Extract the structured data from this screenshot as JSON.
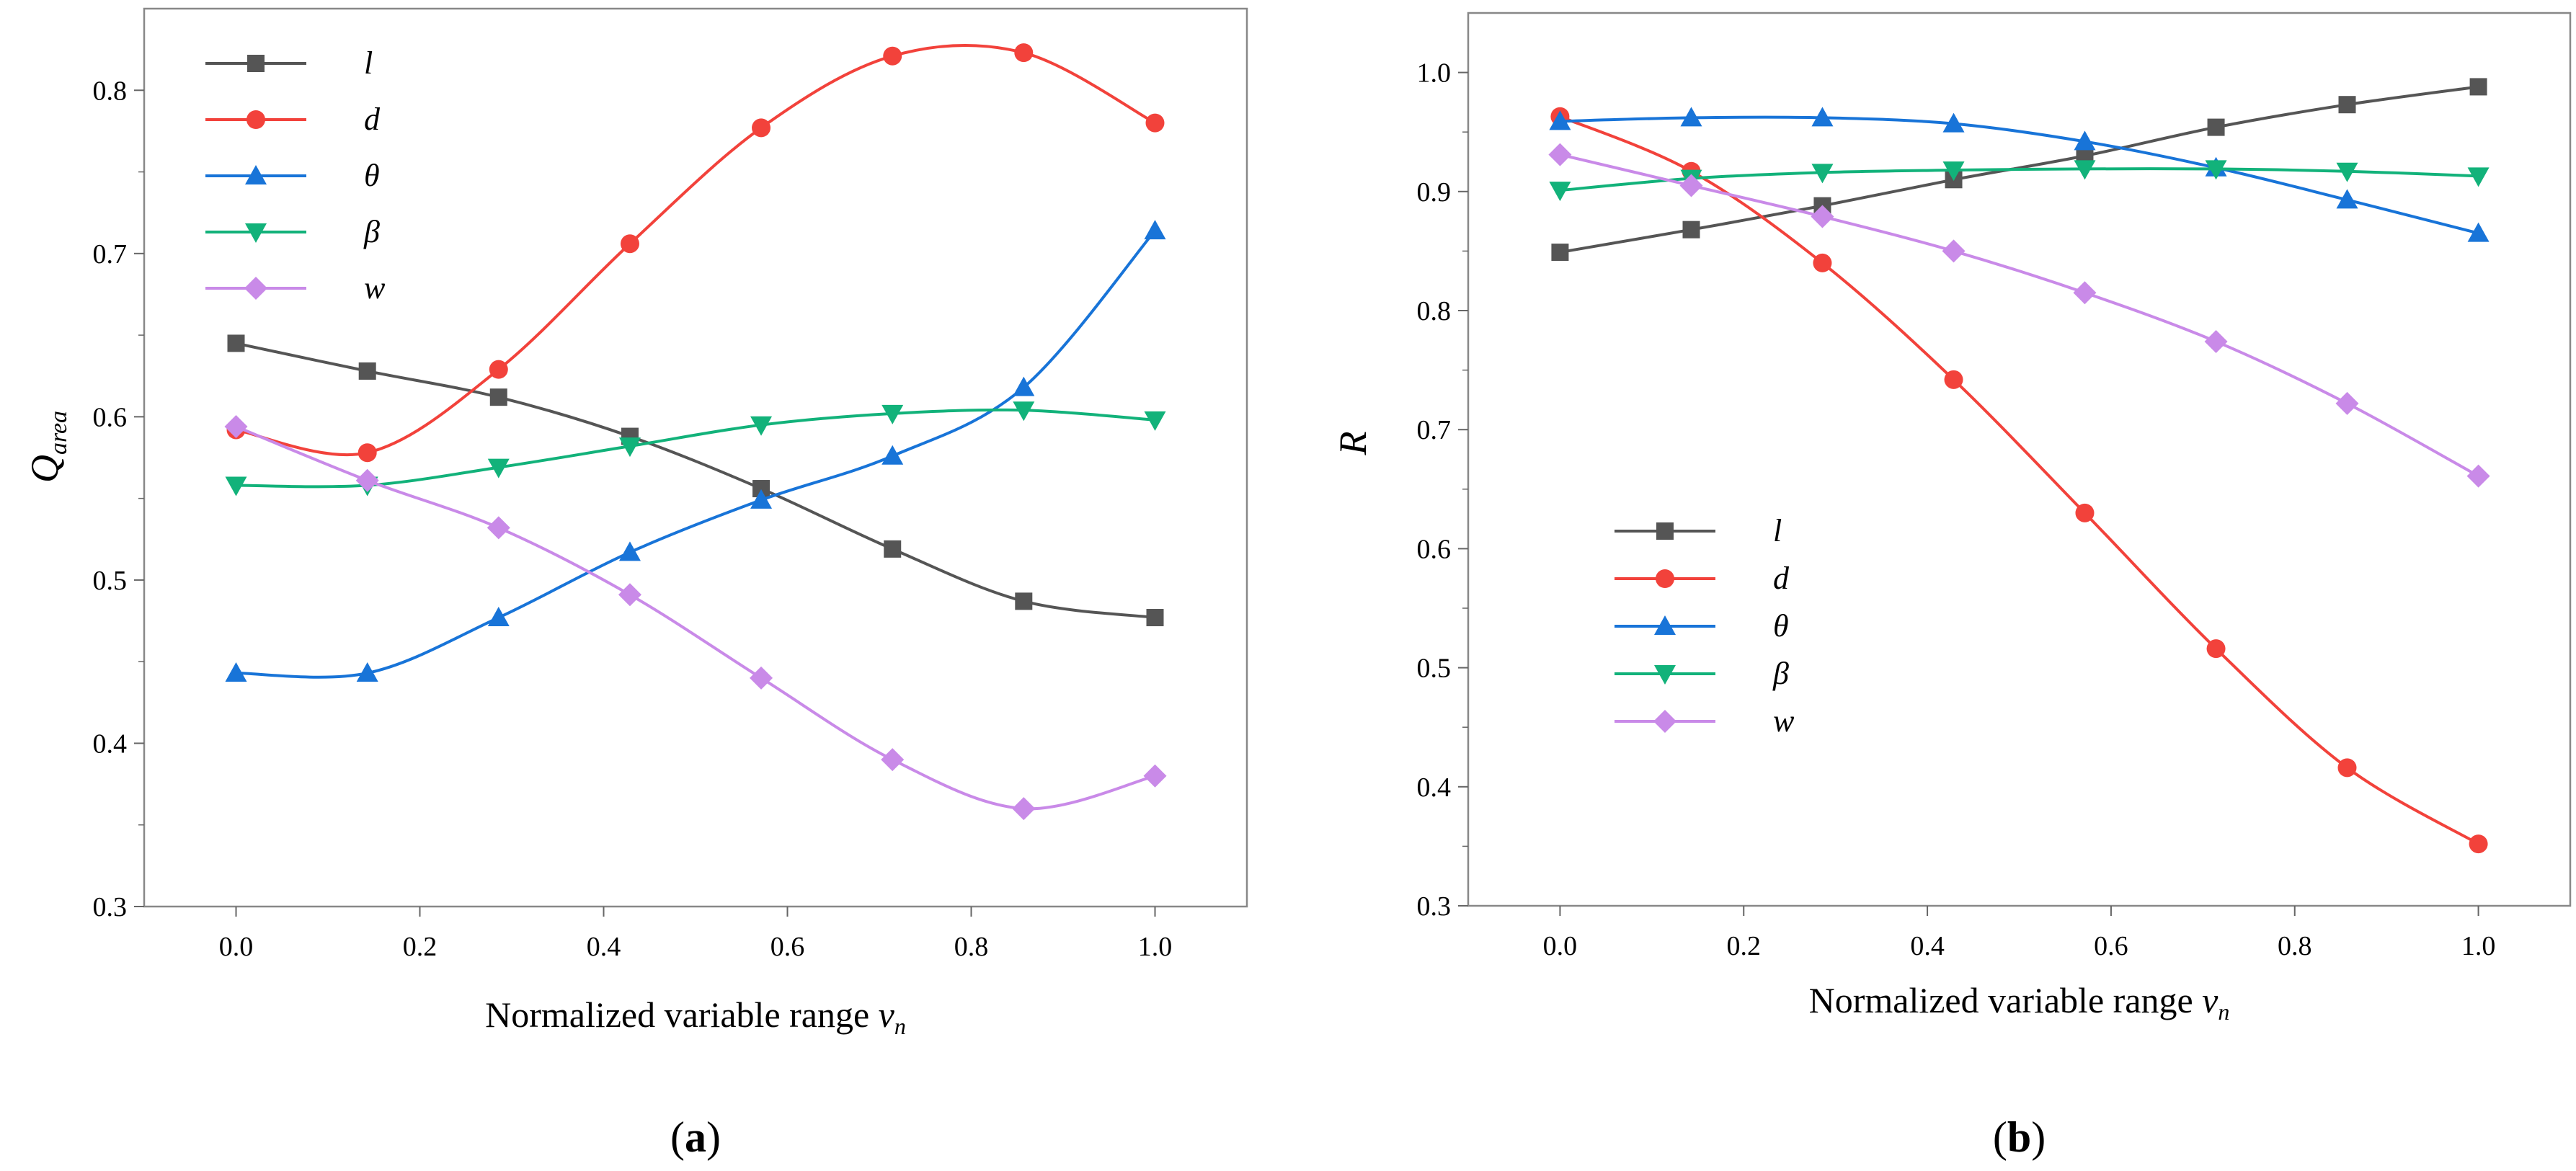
{
  "chart_data": [
    {
      "type": "line",
      "panel": "a",
      "caption": "a",
      "xlabel": "Normalized variable range",
      "xlabel_var": "v",
      "xlabel_sub": "n",
      "ylabel_var": "Q",
      "ylabel_sub": "area",
      "xlim": [
        -0.1,
        1.1
      ],
      "ylim": [
        0.3,
        0.85
      ],
      "xticks": [
        0.0,
        0.2,
        0.4,
        0.6,
        0.8,
        1.0
      ],
      "xtick_labels": [
        "0.0",
        "0.2",
        "0.4",
        "0.6",
        "0.8",
        "1.0"
      ],
      "yticks": [
        0.3,
        0.4,
        0.5,
        0.6,
        0.7,
        0.8
      ],
      "ytick_labels": [
        "0.3",
        "0.4",
        "0.5",
        "0.6",
        "0.7",
        "0.8"
      ],
      "legend_position": "top-left",
      "x": [
        0.0,
        0.1429,
        0.2857,
        0.4286,
        0.5714,
        0.7143,
        0.8571,
        1.0
      ],
      "series": [
        {
          "name": "l",
          "color": "#555555",
          "marker": "square",
          "values": [
            0.645,
            0.628,
            0.612,
            0.588,
            0.556,
            0.519,
            0.487,
            0.477
          ]
        },
        {
          "name": "d",
          "color": "#f2423b",
          "marker": "circle",
          "values": [
            0.592,
            0.578,
            0.629,
            0.706,
            0.777,
            0.821,
            0.823,
            0.78
          ]
        },
        {
          "name": "θ",
          "color": "#1874d8",
          "marker": "triangle-up",
          "values": [
            0.443,
            0.443,
            0.477,
            0.517,
            0.549,
            0.576,
            0.618,
            0.714
          ]
        },
        {
          "name": "β",
          "color": "#12b27a",
          "marker": "triangle-down",
          "values": [
            0.558,
            0.558,
            0.569,
            0.582,
            0.595,
            0.602,
            0.604,
            0.598
          ]
        },
        {
          "name": "w",
          "color": "#c98ae8",
          "marker": "diamond",
          "values": [
            0.594,
            0.561,
            0.532,
            0.491,
            0.44,
            0.39,
            0.36,
            0.38
          ]
        }
      ]
    },
    {
      "type": "line",
      "panel": "b",
      "caption": "b",
      "xlabel": "Normalized variable range",
      "xlabel_var": "v",
      "xlabel_sub": "n",
      "ylabel_var": "R",
      "ylabel_sub": "",
      "xlim": [
        -0.1,
        1.1
      ],
      "ylim": [
        0.3,
        1.05
      ],
      "xticks": [
        0.0,
        0.2,
        0.4,
        0.6,
        0.8,
        1.0
      ],
      "xtick_labels": [
        "0.0",
        "0.2",
        "0.4",
        "0.6",
        "0.8",
        "1.0"
      ],
      "yticks": [
        0.3,
        0.4,
        0.5,
        0.6,
        0.7,
        0.8,
        0.9,
        1.0
      ],
      "ytick_labels": [
        "0.3",
        "0.4",
        "0.5",
        "0.6",
        "0.7",
        "0.8",
        "0.9",
        "1.0"
      ],
      "legend_position": "middle-left",
      "x": [
        0.0,
        0.1429,
        0.2857,
        0.4286,
        0.5714,
        0.7143,
        0.8571,
        1.0
      ],
      "series": [
        {
          "name": "l",
          "color": "#555555",
          "marker": "square",
          "values": [
            0.849,
            0.868,
            0.888,
            0.91,
            0.93,
            0.954,
            0.973,
            0.988
          ]
        },
        {
          "name": "d",
          "color": "#f2423b",
          "marker": "circle",
          "values": [
            0.963,
            0.917,
            0.84,
            0.742,
            0.63,
            0.516,
            0.416,
            0.352
          ]
        },
        {
          "name": "θ",
          "color": "#1874d8",
          "marker": "triangle-up",
          "values": [
            0.959,
            0.962,
            0.962,
            0.957,
            0.942,
            0.92,
            0.893,
            0.865
          ]
        },
        {
          "name": "β",
          "color": "#12b27a",
          "marker": "triangle-down",
          "values": [
            0.901,
            0.911,
            0.916,
            0.918,
            0.919,
            0.919,
            0.917,
            0.913
          ]
        },
        {
          "name": "w",
          "color": "#c98ae8",
          "marker": "diamond",
          "values": [
            0.931,
            0.905,
            0.879,
            0.85,
            0.815,
            0.774,
            0.722,
            0.661
          ]
        }
      ]
    }
  ]
}
